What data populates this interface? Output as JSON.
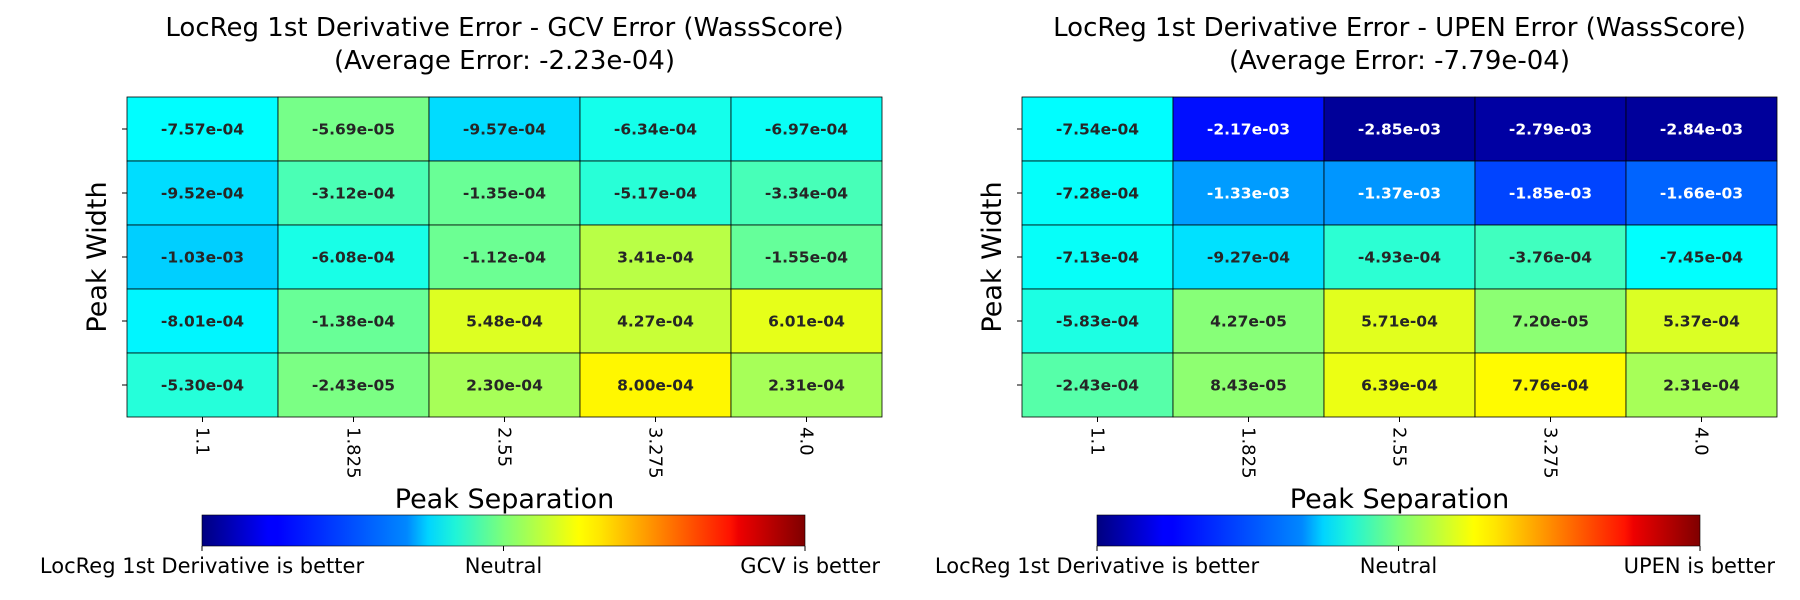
{
  "chart_data": [
    {
      "type": "heatmap",
      "title": "LocReg 1st Derivative Error - GCV Error (WassScore)",
      "subtitle": "(Average Error: -2.23e-04)",
      "xlabel": "Peak Separation",
      "ylabel": "Peak Width",
      "x_ticks": [
        "1.1",
        "1.825",
        "2.55",
        "3.275",
        "4.0"
      ],
      "colormap": "jet",
      "color_range": [
        -0.003,
        0.003
      ],
      "values": [
        [
          -0.000757,
          -5.69e-05,
          -0.000957,
          -0.000634,
          -0.000697
        ],
        [
          -0.000952,
          -0.000312,
          -0.000135,
          -0.000517,
          -0.000334
        ],
        [
          -0.00103,
          -0.000608,
          -0.000112,
          0.000341,
          -0.000155
        ],
        [
          -0.000801,
          -0.000138,
          0.000548,
          0.000427,
          0.000601
        ],
        [
          -0.00053,
          -2.43e-05,
          0.00023,
          0.0008,
          0.000231
        ]
      ],
      "cell_labels": [
        [
          "-7.57e-04",
          "-5.69e-05",
          "-9.57e-04",
          "-6.34e-04",
          "-6.97e-04"
        ],
        [
          "-9.52e-04",
          "-3.12e-04",
          "-1.35e-04",
          "-5.17e-04",
          "-3.34e-04"
        ],
        [
          "-1.03e-03",
          "-6.08e-04",
          "-1.12e-04",
          "3.41e-04",
          "-1.55e-04"
        ],
        [
          "-8.01e-04",
          "-1.38e-04",
          "5.48e-04",
          "4.27e-04",
          "6.01e-04"
        ],
        [
          "-5.30e-04",
          "-2.43e-05",
          "2.30e-04",
          "8.00e-04",
          "2.31e-04"
        ]
      ],
      "colorbar_labels": [
        "LocReg 1st Derivative is better",
        "Neutral",
        "GCV is better"
      ],
      "grid": true
    },
    {
      "type": "heatmap",
      "title": "LocReg 1st Derivative Error - UPEN Error (WassScore)",
      "subtitle": "(Average Error: -7.79e-04)",
      "xlabel": "Peak Separation",
      "ylabel": "Peak Width",
      "x_ticks": [
        "1.1",
        "1.825",
        "2.55",
        "3.275",
        "4.0"
      ],
      "colormap": "jet",
      "color_range": [
        -0.003,
        0.003
      ],
      "values": [
        [
          -0.000754,
          -0.00217,
          -0.00285,
          -0.00279,
          -0.00284
        ],
        [
          -0.000728,
          -0.00133,
          -0.00137,
          -0.00185,
          -0.00166
        ],
        [
          -0.000713,
          -0.000927,
          -0.000493,
          -0.000376,
          -0.000745
        ],
        [
          -0.000583,
          4.27e-05,
          0.000571,
          7.2e-05,
          0.000537
        ],
        [
          -0.000243,
          8.43e-05,
          0.000639,
          0.000776,
          0.000231
        ]
      ],
      "cell_labels": [
        [
          "-7.54e-04",
          "-2.17e-03",
          "-2.85e-03",
          "-2.79e-03",
          "-2.84e-03"
        ],
        [
          "-7.28e-04",
          "-1.33e-03",
          "-1.37e-03",
          "-1.85e-03",
          "-1.66e-03"
        ],
        [
          "-7.13e-04",
          "-9.27e-04",
          "-4.93e-04",
          "-3.76e-04",
          "-7.45e-04"
        ],
        [
          "-5.83e-04",
          "4.27e-05",
          "5.71e-04",
          "7.20e-05",
          "5.37e-04"
        ],
        [
          "-2.43e-04",
          "8.43e-05",
          "6.39e-04",
          "7.76e-04",
          "2.31e-04"
        ]
      ],
      "colorbar_labels": [
        "LocReg 1st Derivative is better",
        "Neutral",
        "UPEN is better"
      ],
      "grid": true
    }
  ]
}
